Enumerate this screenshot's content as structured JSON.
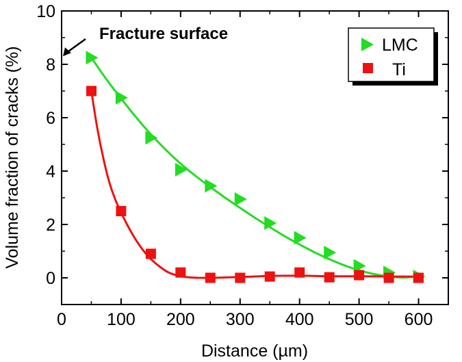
{
  "chart_data": {
    "type": "scatter",
    "title": "",
    "xlabel": "Distance (µm)",
    "ylabel": "Volume fraction of cracks (%)",
    "xlim": [
      0,
      650
    ],
    "ylim": [
      -1,
      10
    ],
    "xticks": [
      0,
      100,
      200,
      300,
      400,
      500,
      600
    ],
    "yticks": [
      0,
      2,
      4,
      6,
      8,
      10
    ],
    "xtick_labels": [
      "0",
      "100",
      "200",
      "300",
      "400",
      "500",
      "600"
    ],
    "ytick_labels": [
      "0",
      "2",
      "4",
      "6",
      "8",
      "10"
    ],
    "grid": false,
    "legend_position": "top-right",
    "series": [
      {
        "name": "LMC",
        "marker": "triangle-right",
        "color": "#22dd22",
        "x": [
          50,
          100,
          150,
          200,
          250,
          300,
          350,
          400,
          450,
          500,
          550,
          600
        ],
        "y": [
          8.25,
          6.75,
          5.25,
          4.05,
          3.45,
          2.95,
          2.05,
          1.5,
          0.95,
          0.45,
          0.2,
          0.05
        ],
        "fit": {
          "x": [
            50,
            75,
            100,
            125,
            150,
            175,
            200,
            225,
            250,
            275,
            300,
            325,
            350,
            375,
            400,
            425,
            450,
            475,
            500,
            525,
            550,
            575,
            600
          ],
          "y": [
            8.25,
            7.45,
            6.72,
            6.02,
            5.38,
            4.8,
            4.28,
            3.82,
            3.4,
            3.0,
            2.62,
            2.25,
            1.9,
            1.56,
            1.25,
            0.96,
            0.7,
            0.47,
            0.28,
            0.14,
            0.05,
            0.01,
            0.05
          ]
        }
      },
      {
        "name": "Ti",
        "marker": "square",
        "color": "#ee1111",
        "x": [
          50,
          100,
          150,
          200,
          250,
          300,
          350,
          400,
          450,
          500,
          550,
          600
        ],
        "y": [
          7.0,
          2.5,
          0.9,
          0.2,
          0.0,
          0.0,
          0.05,
          0.2,
          0.02,
          0.1,
          0.0,
          0.0
        ],
        "fit": {
          "x": [
            50,
            60,
            70,
            80,
            90,
            100,
            110,
            120,
            130,
            140,
            150,
            165,
            180,
            200,
            220,
            250,
            300,
            350,
            400,
            450,
            500,
            550,
            600
          ],
          "y": [
            7.0,
            5.6,
            4.5,
            3.6,
            2.95,
            2.45,
            2.0,
            1.6,
            1.25,
            0.95,
            0.7,
            0.42,
            0.2,
            0.06,
            0.01,
            0.0,
            0.03,
            0.07,
            0.08,
            0.06,
            0.06,
            0.05,
            0.05
          ]
        }
      }
    ],
    "annotations": [
      {
        "text": "Fracture surface",
        "point_x": 0,
        "point_y": 8.2
      }
    ]
  }
}
